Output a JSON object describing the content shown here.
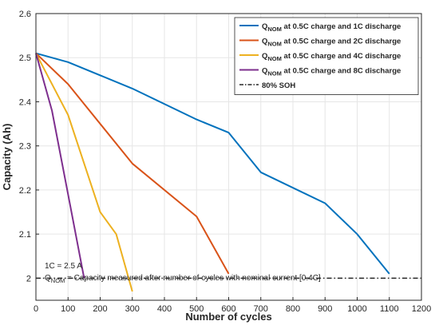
{
  "chart_data": {
    "type": "line",
    "xlabel": "Number of cycles",
    "ylabel": "Capacity (Ah)",
    "xlim": [
      0,
      1200
    ],
    "ylim": [
      1.95,
      2.6
    ],
    "x_ticks": [
      0,
      100,
      200,
      300,
      400,
      500,
      600,
      700,
      800,
      900,
      1000,
      1100,
      1200
    ],
    "y_ticks": [
      2,
      2.1,
      2.2,
      2.3,
      2.4,
      2.5,
      2.6
    ],
    "grid": true,
    "legend_position": "top-right",
    "series": [
      {
        "label_main": "Q",
        "label_sub": "NOM",
        "label_rest": " at 0.5C charge and 1C discharge",
        "color": "#0072BD",
        "x": [
          0,
          100,
          300,
          500,
          600,
          700,
          900,
          1000,
          1100
        ],
        "y": [
          2.51,
          2.49,
          2.43,
          2.36,
          2.33,
          2.24,
          2.17,
          2.1,
          2.01
        ]
      },
      {
        "label_main": "Q",
        "label_sub": "NOM",
        "label_rest": " at 0.5C charge and 2C discharge",
        "color": "#D95319",
        "x": [
          0,
          100,
          300,
          500,
          600
        ],
        "y": [
          2.51,
          2.44,
          2.26,
          2.14,
          2.01
        ]
      },
      {
        "label_main": "Q",
        "label_sub": "NOM",
        "label_rest": " at 0.5C charge and 4C discharge",
        "color": "#EDB120",
        "x": [
          0,
          100,
          200,
          250,
          300
        ],
        "y": [
          2.51,
          2.37,
          2.15,
          2.1,
          1.97
        ]
      },
      {
        "label_main": "Q",
        "label_sub": "NOM",
        "label_rest": " at 0.5C charge and 8C discharge",
        "color": "#7E2F8E",
        "x": [
          0,
          50,
          100,
          150
        ],
        "y": [
          2.51,
          2.38,
          2.19,
          2.0
        ]
      }
    ],
    "reference_line": {
      "label": "80% SOH",
      "y": 2.0,
      "color": "#262626",
      "style": "dash-dot"
    },
    "annotations": {
      "line1": "1C = 2.5 A",
      "line2_main": "Q",
      "line2_sub": "NOM",
      "line2_rest": " = Capacity measured after number of cycles with nominal current [0.4C]"
    }
  }
}
